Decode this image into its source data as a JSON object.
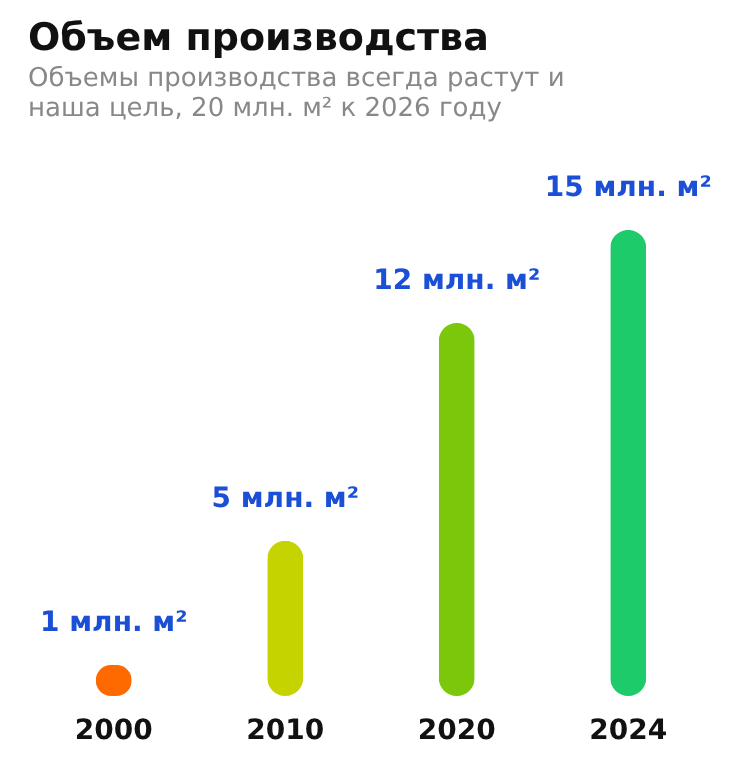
{
  "chart_data": {
    "type": "bar",
    "title": "Объем производства",
    "subtitle": "Объемы производства всегда растут и наша цель, 20 млн. м² к 2026 году",
    "categories": [
      "2000",
      "2010",
      "2020",
      "2024"
    ],
    "values": [
      1,
      5,
      12,
      15
    ],
    "colors": [
      "#ff6a00",
      "#c5d400",
      "#7ac70c",
      "#1ecb6b"
    ],
    "value_labels": [
      "1 млн. м²",
      "5 млн. м²",
      "12 млн. м²",
      "15 млн. м²"
    ],
    "tick_labels": "x",
    "grid": false
  }
}
